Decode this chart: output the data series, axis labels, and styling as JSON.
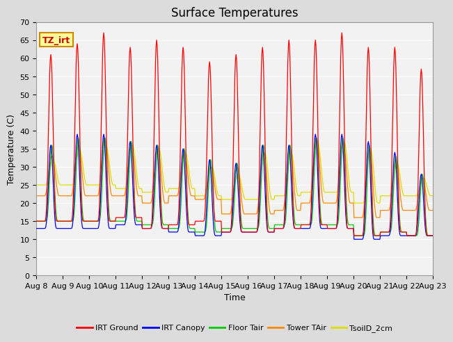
{
  "title": "Surface Temperatures",
  "ylabel": "Temperature (C)",
  "xlabel": "Time",
  "annotation_text": "TZ_irt",
  "annotation_bg": "#FFFF99",
  "annotation_border": "#CC8800",
  "x_labels": [
    "Aug 8",
    "Aug 9",
    "Aug 10",
    "Aug 11",
    "Aug 12",
    "Aug 13",
    "Aug 14",
    "Aug 15",
    "Aug 16",
    "Aug 17",
    "Aug 18",
    "Aug 19",
    "Aug 20",
    "Aug 21",
    "Aug 22",
    "Aug 23"
  ],
  "ylim": [
    0,
    70
  ],
  "yticks": [
    0,
    5,
    10,
    15,
    20,
    25,
    30,
    35,
    40,
    45,
    50,
    55,
    60,
    65,
    70
  ],
  "series": [
    {
      "name": "IRT Ground",
      "color": "#FF0000"
    },
    {
      "name": "IRT Canopy",
      "color": "#0000FF"
    },
    {
      "name": "Floor Tair",
      "color": "#00CC00"
    },
    {
      "name": "Tower TAir",
      "color": "#FF8800"
    },
    {
      "name": "TsoilD_2cm",
      "color": "#DDDD00"
    }
  ],
  "bg_color": "#DCDCDC",
  "plot_bg_color": "#F2F2F2",
  "grid_color": "#FFFFFF",
  "title_fontsize": 12,
  "axis_fontsize": 9,
  "tick_fontsize": 8,
  "day_peaks_ground": [
    61,
    64,
    67,
    63,
    65,
    63,
    59,
    61,
    63,
    65,
    65,
    67,
    63,
    63,
    57
  ],
  "day_peaks_canopy": [
    36,
    39,
    39,
    37,
    36,
    35,
    32,
    31,
    36,
    36,
    39,
    39,
    37,
    34,
    28
  ],
  "day_peaks_floor": [
    36,
    38,
    38,
    37,
    36,
    35,
    32,
    31,
    36,
    36,
    38,
    38,
    36,
    33,
    28
  ],
  "day_peaks_tower": [
    33,
    36,
    38,
    36,
    35,
    34,
    30,
    30,
    34,
    35,
    38,
    37,
    35,
    32,
    27
  ],
  "day_peaks_soil": [
    32,
    35,
    36,
    36,
    35,
    34,
    30,
    28,
    34,
    34,
    37,
    37,
    35,
    31,
    27
  ],
  "night_min_ground": [
    15,
    15,
    15,
    16,
    13,
    14,
    15,
    12,
    12,
    13,
    14,
    13,
    11,
    12,
    11
  ],
  "night_min_canopy": [
    13,
    13,
    13,
    14,
    13,
    12,
    11,
    12,
    12,
    13,
    13,
    13,
    10,
    11,
    11
  ],
  "night_min_floor": [
    15,
    15,
    15,
    15,
    14,
    13,
    12,
    13,
    13,
    14,
    14,
    14,
    11,
    12,
    11
  ],
  "night_min_tower": [
    22,
    22,
    22,
    22,
    20,
    22,
    21,
    17,
    17,
    18,
    20,
    20,
    16,
    18,
    18
  ],
  "night_min_soil": [
    25,
    25,
    25,
    24,
    23,
    24,
    22,
    21,
    21,
    22,
    23,
    23,
    20,
    22,
    22
  ]
}
